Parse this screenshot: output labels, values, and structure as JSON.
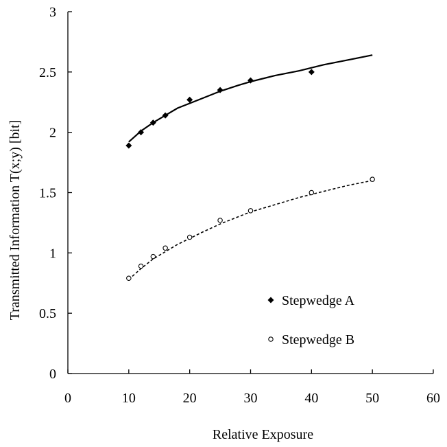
{
  "chart_data": {
    "type": "scatter",
    "title": "",
    "xlabel": "Relative Exposure",
    "ylabel": "Transmitted Information T(x;y) [bit]",
    "xlim": [
      0,
      60
    ],
    "ylim": [
      0,
      3
    ],
    "xticks": [
      "0",
      "10",
      "20",
      "30",
      "40",
      "50",
      "60"
    ],
    "yticks": [
      "0",
      "0.5",
      "1",
      "1.5",
      "2",
      "2.5",
      "3"
    ],
    "grid": false,
    "legend_position": "bottom-right",
    "series": [
      {
        "name": "Stepwedge A",
        "marker": "filled-diamond",
        "line_style": "solid",
        "color": "#000000",
        "x": [
          10,
          12,
          14,
          16,
          20,
          25,
          30,
          40
        ],
        "y": [
          1.89,
          2.0,
          2.08,
          2.14,
          2.27,
          2.35,
          2.43,
          2.5
        ],
        "fit_x": [
          10,
          12,
          14,
          16,
          18,
          20,
          22,
          25,
          28,
          30,
          34,
          38,
          42,
          46,
          50
        ],
        "fit_y": [
          1.92,
          2.01,
          2.08,
          2.14,
          2.2,
          2.24,
          2.28,
          2.34,
          2.39,
          2.42,
          2.47,
          2.51,
          2.56,
          2.6,
          2.64
        ]
      },
      {
        "name": "Stepwedge B",
        "marker": "open-circle",
        "line_style": "dashed",
        "color": "#000000",
        "x": [
          10,
          12,
          14,
          16,
          20,
          25,
          30,
          40,
          50
        ],
        "y": [
          0.79,
          0.89,
          0.97,
          1.04,
          1.13,
          1.27,
          1.35,
          1.5,
          1.61
        ],
        "fit_x": [
          10,
          12,
          14,
          16,
          18,
          20,
          22,
          25,
          28,
          30,
          34,
          38,
          42,
          46,
          50
        ],
        "fit_y": [
          0.78,
          0.87,
          0.95,
          1.01,
          1.07,
          1.12,
          1.17,
          1.24,
          1.3,
          1.34,
          1.4,
          1.46,
          1.51,
          1.56,
          1.6
        ]
      }
    ]
  }
}
